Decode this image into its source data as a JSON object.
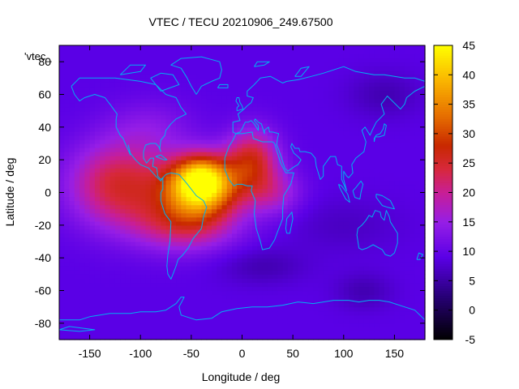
{
  "chart_data": {
    "type": "heatmap",
    "title": "VTEC / TECU 20210906_249.67500",
    "xlabel": "Longitude / deg",
    "ylabel": "Latitude / deg",
    "key_label": "'vtec_",
    "xlim": [
      -180,
      180
    ],
    "ylim": [
      -90,
      90
    ],
    "color_range": [
      -5,
      45
    ],
    "x_ticks": [
      -150,
      -100,
      -50,
      0,
      50,
      100,
      150
    ],
    "y_ticks": [
      -80,
      -60,
      -40,
      -20,
      0,
      20,
      40,
      60,
      80
    ],
    "color_ticks": [
      -5,
      0,
      5,
      10,
      15,
      20,
      25,
      30,
      35,
      40,
      45
    ],
    "grid_resolution_deg": [
      5,
      2.5
    ],
    "background_vtec": 9,
    "palette": "black-blue-purple-red-orange-yellow (gnuplot pm3d)",
    "overlay": "coastlines",
    "overlay_color": "#00b0f0",
    "features": [
      {
        "lon": -40,
        "lat": 5,
        "peak": 36,
        "sx": 25,
        "sy": 12
      },
      {
        "lon": -40,
        "lat": 12,
        "peak": 6,
        "sx": 14,
        "sy": 8
      },
      {
        "lon": -120,
        "lat": 5,
        "peak": 16,
        "sx": 35,
        "sy": 18
      },
      {
        "lon": -55,
        "lat": -18,
        "peak": 14,
        "sx": 35,
        "sy": 12
      },
      {
        "lon": -90,
        "lat": 40,
        "peak": 4,
        "sx": 30,
        "sy": 12
      },
      {
        "lon": 10,
        "lat": 20,
        "peak": 16,
        "sx": 18,
        "sy": 13
      },
      {
        "lon": 30,
        "lat": 0,
        "peak": 8,
        "sx": 20,
        "sy": 10
      },
      {
        "lon": 100,
        "lat": -20,
        "peak": -2,
        "sx": 40,
        "sy": 12
      },
      {
        "lon": 20,
        "lat": -45,
        "peak": -3,
        "sx": 30,
        "sy": 8
      },
      {
        "lon": 140,
        "lat": 60,
        "peak": -3,
        "sx": 25,
        "sy": 10
      },
      {
        "lon": 120,
        "lat": -60,
        "peak": -3,
        "sx": 20,
        "sy": 8
      }
    ]
  }
}
